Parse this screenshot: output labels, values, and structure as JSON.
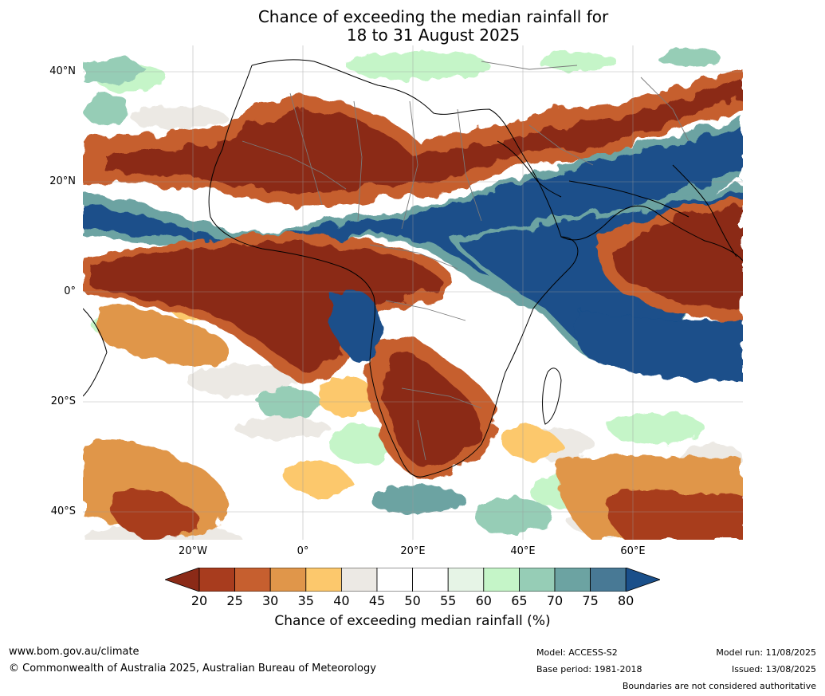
{
  "title": {
    "line1": "Chance of exceeding the median rainfall for",
    "line2": "18 to 31 August 2025"
  },
  "map": {
    "lat_labels": [
      "40°N",
      "20°N",
      "0°",
      "20°S",
      "40°S"
    ],
    "lon_labels": [
      "20°W",
      "0°",
      "20°E",
      "40°E",
      "60°E"
    ]
  },
  "colorbar": {
    "ticks": [
      "20",
      "25",
      "30",
      "35",
      "40",
      "45",
      "50",
      "55",
      "60",
      "65",
      "70",
      "75",
      "80"
    ],
    "colors": [
      "#8b2a17",
      "#a83c1e",
      "#c65f2f",
      "#e0964a",
      "#fcc86c",
      "#ece9e4",
      "#ffffff",
      "#ffffff",
      "#e6f4e6",
      "#c5f5c8",
      "#96cdb6",
      "#6ca3a2",
      "#487995",
      "#1a4f8a"
    ],
    "label": "Chance of exceeding median rainfall (%)"
  },
  "footer": {
    "website": "www.bom.gov.au/climate",
    "copyright": "© Commonwealth of Australia 2025, Australian Bureau of Meteorology",
    "model": "Model: ACCESS-S2",
    "base_period": "Base period: 1981-2018",
    "model_run": "Model run: 11/08/2025",
    "issued": "Issued: 13/08/2025",
    "disclaimer": "Boundaries are not considered authoritative"
  }
}
